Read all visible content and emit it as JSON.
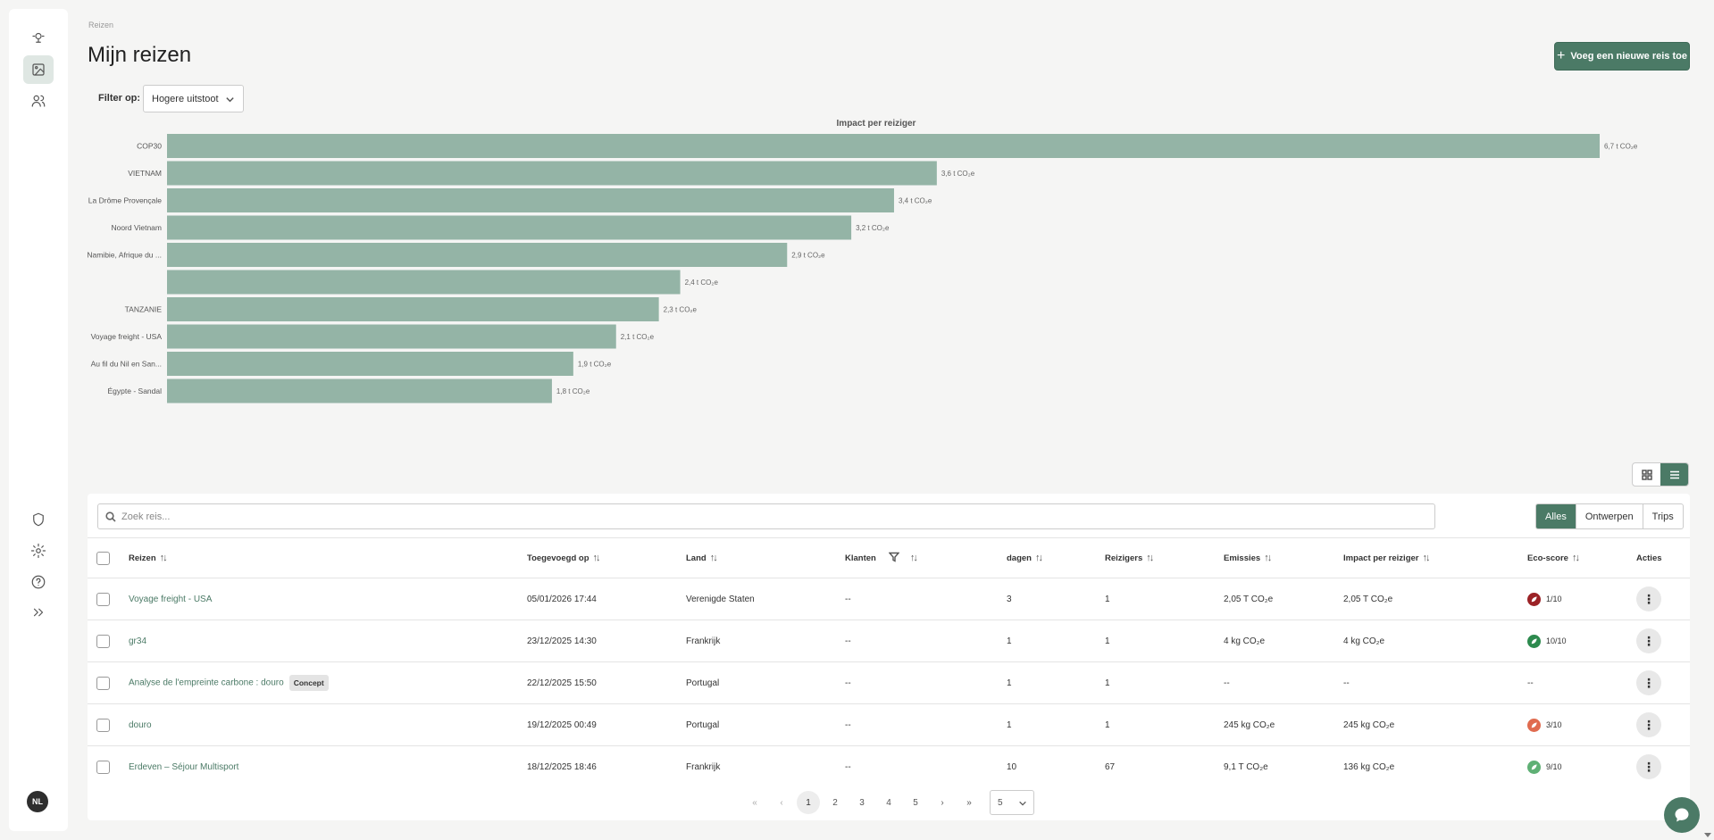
{
  "breadcrumb": "Reizen",
  "page_title": "Mijn reizen",
  "add_button_label": "Voeg een nieuwe reis toe",
  "filter": {
    "label": "Filter op:",
    "value": "Hogere uitstoot"
  },
  "chart_data": {
    "type": "bar",
    "orientation": "horizontal",
    "title": "Impact per reiziger",
    "categories": [
      "COP30",
      "VIETNAM",
      "La Drôme Provençale",
      "Noord Vietnam",
      "Namibie, Afrique du ...",
      "",
      "TANZANIE",
      "Voyage freight - USA",
      "Au fil du Nil en San...",
      "Égypte - Sandal"
    ],
    "values": [
      6.7,
      3.6,
      3.4,
      3.2,
      2.9,
      2.4,
      2.3,
      2.1,
      1.9,
      1.8
    ],
    "value_labels": [
      "6,7 t CO₂e",
      "3,6 t CO₂e",
      "3,4 t CO₂e",
      "3,2 t CO₂e",
      "2,9 t CO₂e",
      "2,4 t CO₂e",
      "2,3 t CO₂e",
      "2,1 t CO₂e",
      "1,9 t CO₂e",
      "1,8 t CO₂e"
    ],
    "unit": "t CO₂e",
    "color": "#94b4a6",
    "xlim": [
      0,
      6.7
    ],
    "grid": false,
    "legend": "none"
  },
  "search_placeholder": "Zoek reis...",
  "segments": [
    "Alles",
    "Ontwerpen",
    "Trips"
  ],
  "columns": [
    "Reizen",
    "Toegevoegd op",
    "Land",
    "Klanten",
    "dagen",
    "Reizigers",
    "Emissies",
    "Impact per reiziger",
    "Eco-score",
    "Acties"
  ],
  "rows": [
    {
      "name": "Voyage freight - USA",
      "date": "05/01/2026 17:44",
      "country": "Verenigde Staten",
      "clients": "--",
      "days": "3",
      "travelers": "1",
      "emissions": "2,05 T CO₂e",
      "impact": "2,05 T CO₂e",
      "eco": "1/10",
      "eco_color": "#9b2226",
      "concept": ""
    },
    {
      "name": "gr34",
      "date": "23/12/2025 14:30",
      "country": "Frankrijk",
      "clients": "--",
      "days": "1",
      "travelers": "1",
      "emissions": "4 kg CO₂e",
      "impact": "4 kg CO₂e",
      "eco": "10/10",
      "eco_color": "#2d8a4e",
      "concept": ""
    },
    {
      "name": "Analyse de l'empreinte carbone : douro",
      "date": "22/12/2025 15:50",
      "country": "Portugal",
      "clients": "--",
      "days": "1",
      "travelers": "1",
      "emissions": "--",
      "impact": "--",
      "eco": "--",
      "eco_color": "",
      "concept": "Concept"
    },
    {
      "name": "douro",
      "date": "19/12/2025 00:49",
      "country": "Portugal",
      "clients": "--",
      "days": "1",
      "travelers": "1",
      "emissions": "245 kg CO₂e",
      "impact": "245 kg CO₂e",
      "eco": "3/10",
      "eco_color": "#e06b4f",
      "concept": ""
    },
    {
      "name": "Erdeven – Séjour Multisport",
      "date": "18/12/2025 18:46",
      "country": "Frankrijk",
      "clients": "--",
      "days": "10",
      "travelers": "67",
      "emissions": "9,1 T CO₂e",
      "impact": "136 kg CO₂e",
      "eco": "9/10",
      "eco_color": "#5fb075",
      "concept": ""
    }
  ],
  "pagination": {
    "first": "«",
    "prev": "‹",
    "pages": [
      "1",
      "2",
      "3",
      "4",
      "5"
    ],
    "current": "1",
    "next": "›",
    "last": "»",
    "page_size": "5"
  },
  "avatar_initials": "NL",
  "colors": {
    "accent": "#4b7a66",
    "bar": "#94b4a6"
  }
}
